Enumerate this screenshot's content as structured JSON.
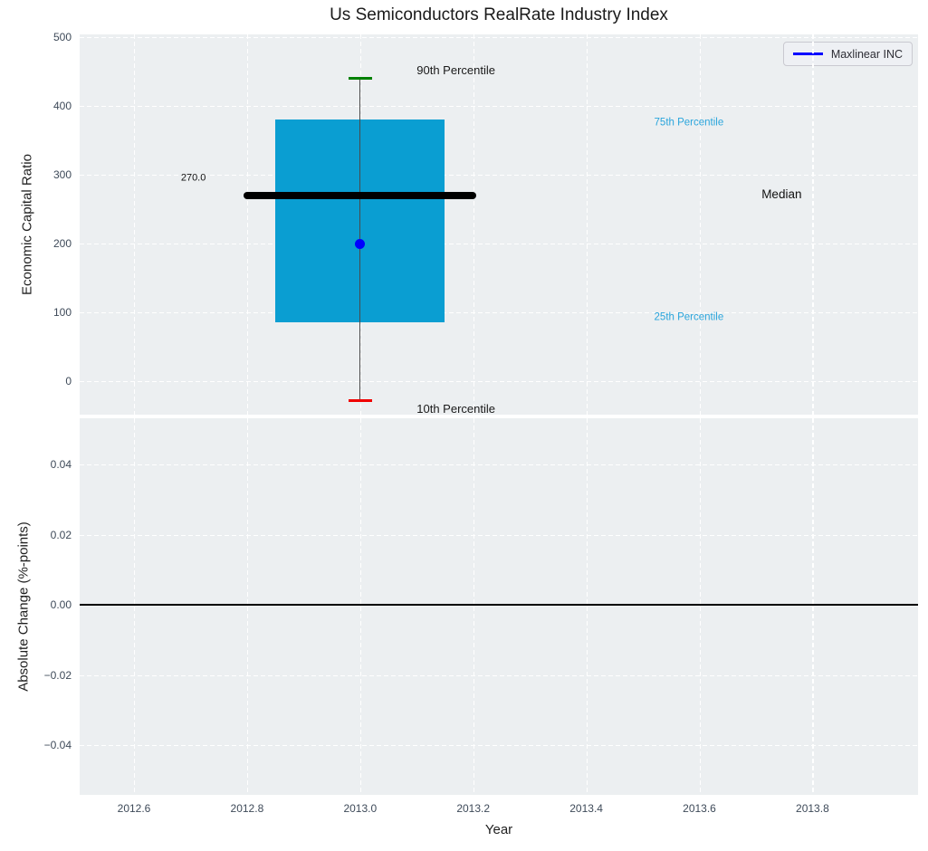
{
  "title": "Us Semiconductors RealRate Industry Index",
  "legend": {
    "label": "Maxlinear INC",
    "line_color": "#0000ff"
  },
  "x_axis": {
    "label": "Year",
    "tick_values": [
      2012.6,
      2012.8,
      2013.0,
      2013.2,
      2013.4,
      2013.6,
      2013.8
    ]
  },
  "top_axes": {
    "ylabel": "Economic Capital Ratio",
    "tick_values": [
      500,
      400,
      300,
      200,
      100,
      0
    ]
  },
  "bottom_axes": {
    "ylabel": "Absolute Change (%-points)",
    "tick_values": [
      0.04,
      0.02,
      0,
      -0.02,
      -0.04
    ],
    "tick_labels": [
      "0.04",
      "0.02",
      "0.00",
      "−0.02",
      "−0.04"
    ]
  },
  "colors": {
    "axes_bg": "#eceff1",
    "grid": "#ffffff",
    "tick_label": "#3e4a59",
    "box_fill": "#0a9ed2",
    "median_line": "#000000",
    "whisker": "#4a4a4a",
    "p90_cap": "#008000",
    "p10_cap": "#f00000",
    "percentile_label_blue": "#2aa5dc",
    "company_point": "#0000ff",
    "zero_line": "#000000"
  },
  "chart_data": {
    "type": "boxplot",
    "title": "Us Semiconductors RealRate Industry Index",
    "xlabel": "Year",
    "legend": [
      "Maxlinear INC"
    ],
    "xlim": [
      2012.504,
      2013.987
    ],
    "grid": true,
    "panels": [
      "Economic Capital Ratio",
      "Absolute Change (%-points)"
    ],
    "top_panel": {
      "ylabel": "Economic Capital Ratio",
      "ylim": [
        -50,
        503
      ],
      "x": 2013.0,
      "percentiles": {
        "p10": -28,
        "p25": 85,
        "median": 270,
        "p75": 380,
        "p90": 440
      },
      "median_value_label": "270.0",
      "company_point": {
        "name": "Maxlinear INC",
        "x": 2013.0,
        "y": 199
      }
    },
    "bottom_panel": {
      "ylabel": "Absolute Change (%-points)",
      "ylim": [
        -0.054,
        0.053
      ],
      "zero_line": 0.0,
      "series": []
    },
    "annotations": [
      {
        "text": "90th Percentile",
        "x": 2013.1,
        "y": 451,
        "color": "#1a1a1a",
        "size": 13
      },
      {
        "text": "10th Percentile",
        "x": 2013.1,
        "y": -41,
        "color": "#1a1a1a",
        "size": 13
      },
      {
        "text": "75th Percentile",
        "x": 2013.52,
        "y": 375,
        "color": "#2aa5dc",
        "size": 11.5
      },
      {
        "text": "25th Percentile",
        "x": 2013.52,
        "y": 92,
        "color": "#2aa5dc",
        "size": 11.5
      },
      {
        "text": "Median",
        "x": 2013.71,
        "y": 271,
        "color": "#111111",
        "size": 13.5
      },
      {
        "text": "270.0",
        "x": 2012.683,
        "y": 295,
        "color": "#111111",
        "size": 11
      }
    ]
  }
}
